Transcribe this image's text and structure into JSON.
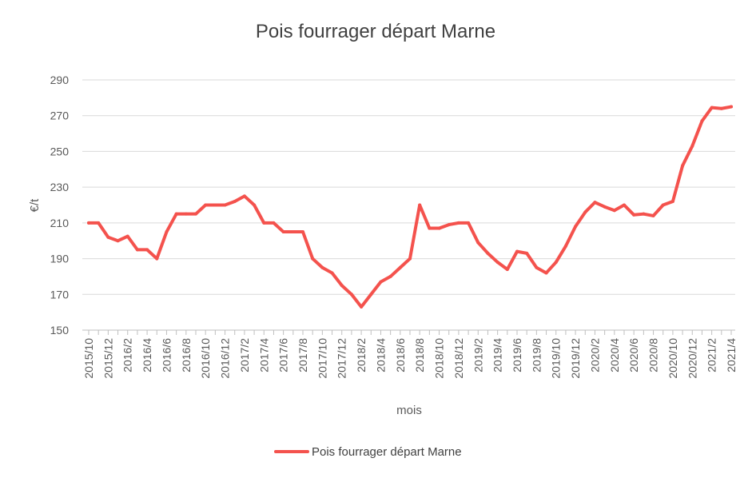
{
  "chart_data": {
    "type": "line",
    "title": "Pois fourrager départ Marne",
    "xlabel": "mois",
    "ylabel": "€/t",
    "ylim": [
      150,
      290
    ],
    "yticks": [
      150,
      170,
      190,
      210,
      230,
      250,
      270,
      290
    ],
    "grid": true,
    "legend_position": "bottom",
    "x": [
      "2015/10",
      "2015/11",
      "2015/12",
      "2016/1",
      "2016/2",
      "2016/3",
      "2016/4",
      "2016/5",
      "2016/6",
      "2016/7",
      "2016/8",
      "2016/9",
      "2016/10",
      "2016/11",
      "2016/12",
      "2017/1",
      "2017/2",
      "2017/3",
      "2017/4",
      "2017/5",
      "2017/6",
      "2017/7",
      "2017/8",
      "2017/9",
      "2017/10",
      "2017/11",
      "2017/12",
      "2018/1",
      "2018/2",
      "2018/3",
      "2018/4",
      "2018/5",
      "2018/6",
      "2018/7",
      "2018/8",
      "2018/9",
      "2018/10",
      "2018/11",
      "2018/12",
      "2019/1",
      "2019/2",
      "2019/3",
      "2019/4",
      "2019/5",
      "2019/6",
      "2019/7",
      "2019/8",
      "2019/9",
      "2019/10",
      "2019/11",
      "2019/12",
      "2020/1",
      "2020/2",
      "2020/3",
      "2020/4",
      "2020/5",
      "2020/6",
      "2020/7",
      "2020/8",
      "2020/9",
      "2020/10",
      "2020/11",
      "2020/12",
      "2021/1",
      "2021/2",
      "2021/3",
      "2021/4"
    ],
    "x_tick_labels": [
      "2015/10",
      "2015/12",
      "2016/2",
      "2016/4",
      "2016/6",
      "2016/8",
      "2016/10",
      "2016/12",
      "2017/2",
      "2017/4",
      "2017/6",
      "2017/8",
      "2017/10",
      "2017/12",
      "2018/2",
      "2018/4",
      "2018/6",
      "2018/8",
      "2018/10",
      "2018/12",
      "2019/2",
      "2019/4",
      "2019/6",
      "2019/8",
      "2019/10",
      "2019/12",
      "2020/2",
      "2020/4",
      "2020/6",
      "2020/8",
      "2020/10",
      "2020/12",
      "2021/2",
      "2021/4"
    ],
    "series": [
      {
        "name": "Pois fourrager départ Marne",
        "color": "#F4524D",
        "values": [
          210,
          210,
          202,
          200,
          202.5,
          195,
          195,
          190,
          205,
          215,
          215,
          215,
          220,
          220,
          220,
          222,
          225,
          220,
          210,
          210,
          205,
          205,
          205,
          190,
          185,
          182,
          175,
          170,
          163,
          170,
          177,
          180,
          185,
          190,
          220,
          207,
          207,
          209,
          210,
          210,
          199,
          193,
          188,
          184,
          194,
          193,
          185,
          182,
          188,
          197,
          208,
          216,
          221.5,
          219,
          217,
          220,
          214.5,
          215,
          214,
          220,
          222,
          242,
          253,
          267,
          274.5,
          274,
          275
        ]
      }
    ]
  }
}
